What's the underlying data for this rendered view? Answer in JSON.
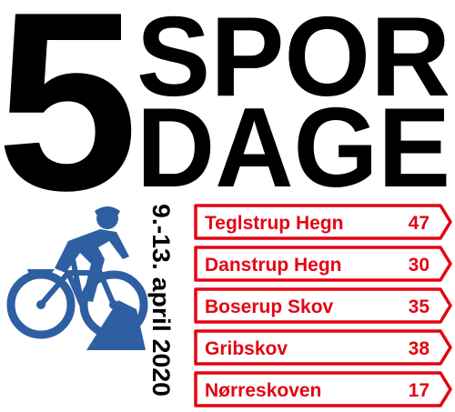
{
  "logo": {
    "number": "5",
    "line1": "SPOR",
    "line2": "DAGE"
  },
  "dates": "9.-13. april 2020",
  "trails": [
    {
      "name": "Teglstrup Hegn",
      "distance": 47
    },
    {
      "name": "Danstrup Hegn",
      "distance": 30
    },
    {
      "name": "Boserup Skov",
      "distance": 35
    },
    {
      "name": "Gribskov",
      "distance": 38
    },
    {
      "name": "Nørreskoven",
      "distance": 17
    }
  ]
}
